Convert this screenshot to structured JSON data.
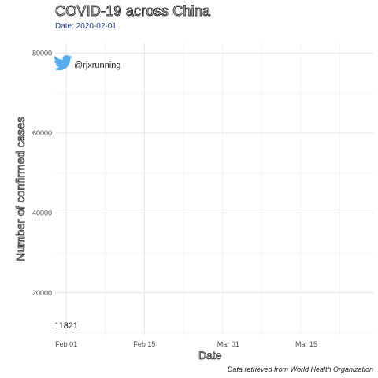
{
  "title": "COVID-19 across China",
  "subtitle": "Date: 2020-02-01",
  "caption": "Data retrieved from World Health Organization",
  "brand": {
    "icon": "twitter-bird-icon",
    "handle": "@rjxrunning",
    "color": "#55acee"
  },
  "chart_data": {
    "type": "line",
    "title": "COVID-19 across China",
    "subtitle": "Date: 2020-02-01",
    "xlabel": "Date",
    "ylabel": "Number of confirmed cases",
    "x_ticks": [
      "Feb 01",
      "Feb 15",
      "Mar 01",
      "Mar 15"
    ],
    "x_tick_dates": [
      "2020-02-01",
      "2020-02-15",
      "2020-03-01",
      "2020-03-15"
    ],
    "xlim": [
      "2020-01-30",
      "2020-03-27"
    ],
    "y_ticks": [
      20000,
      40000,
      60000,
      80000
    ],
    "ylim": [
      9500,
      82500
    ],
    "grid": true,
    "series": [
      {
        "x": [
          "2020-02-01"
        ],
        "y": [
          11821
        ]
      }
    ],
    "data_labels": [
      {
        "x": "2020-02-01",
        "y": 11821,
        "text": "11821"
      }
    ]
  }
}
